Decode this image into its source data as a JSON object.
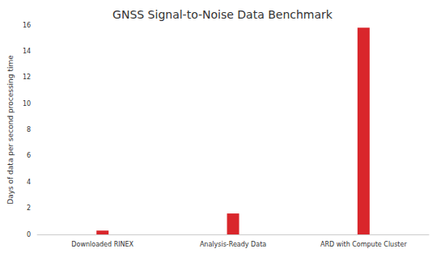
{
  "chart_data": {
    "type": "bar",
    "title": "GNSS Signal-to-Noise Data Benchmark",
    "y_label": "Days of data per second processing time",
    "categories": [
      "Downloaded RINEX",
      "Analysis-Ready Data",
      "ARD with Compute Cluster"
    ],
    "values": [
      0.3,
      1.6,
      15.8
    ],
    "color": "#d9262b",
    "ylim": [
      0,
      16
    ],
    "yticks": [
      0,
      2,
      4,
      6,
      8,
      10,
      12,
      14,
      16
    ],
    "grid": false
  }
}
